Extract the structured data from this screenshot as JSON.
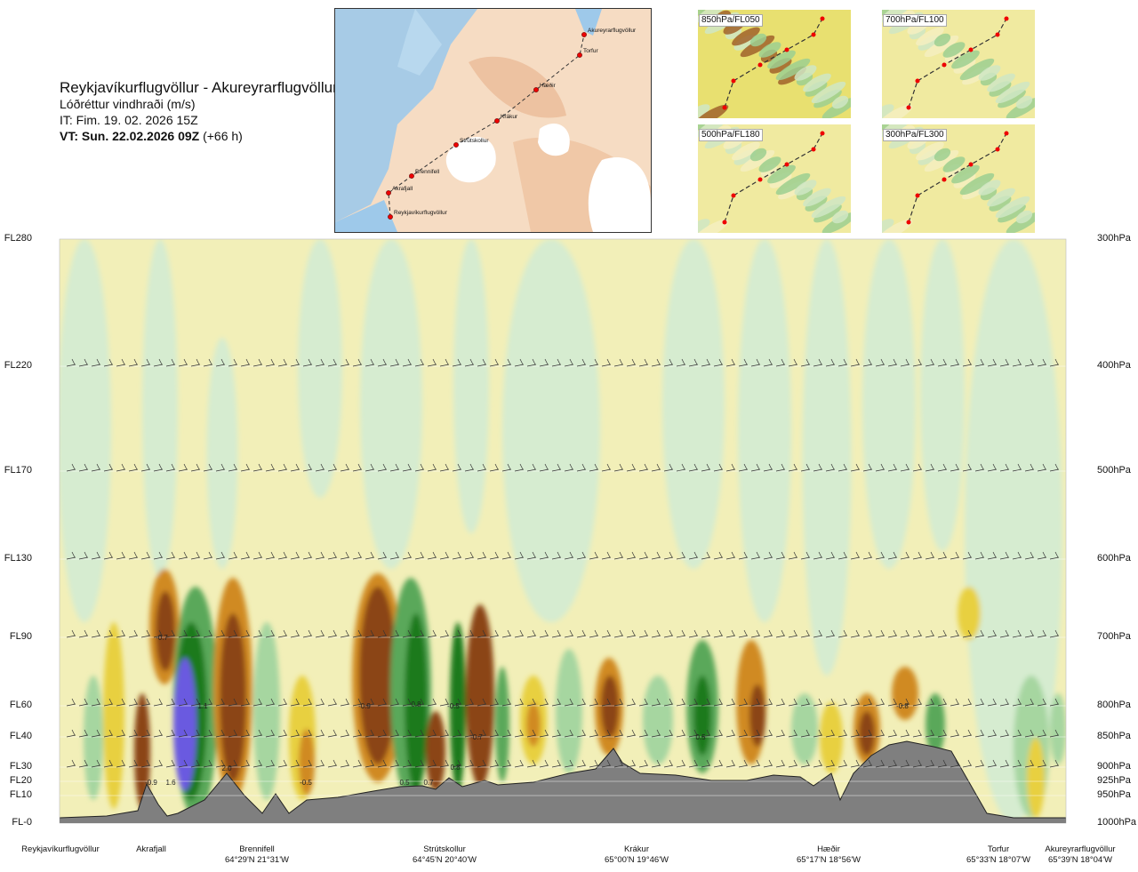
{
  "header": {
    "route": "Reykjavíkurflugvöllur - Akureyrarflugvöllur",
    "quantity": "Lóðréttur vindhraði (m/s)",
    "issue_time": "IT: Fim. 19. 02. 2026 15Z",
    "valid_time": "VT: Sun. 22.02.2026 09Z",
    "lead": "(+66 h)"
  },
  "map": {
    "points": [
      {
        "name": "Akureyrarflugvöllur"
      },
      {
        "name": "Torfur"
      },
      {
        "name": "Hæðir"
      },
      {
        "name": "Krákur"
      },
      {
        "name": "Strútskollur"
      },
      {
        "name": "Brennifell"
      },
      {
        "name": "Akrafjall"
      },
      {
        "name": "Reykjavíkurflugvöllur"
      }
    ]
  },
  "thumbnails": [
    {
      "label": "850hPa/FL050"
    },
    {
      "label": "700hPa/FL100"
    },
    {
      "label": "500hPa/FL180"
    },
    {
      "label": "300hPa/FL300"
    }
  ],
  "colors": {
    "ascent_dark": "#1a7a1a",
    "ascent_mid": "#5aa85a",
    "ascent_light": "#a6d6a0",
    "ascent_pale": "#d6ecd0",
    "ascent_strong": "#6a5ae0",
    "descent_pale": "#f4efb0",
    "descent_light": "#e8d040",
    "descent_mid": "#d08a20",
    "descent_dark": "#8b4513",
    "descent_strong": "#8b1a1a",
    "terrain": "#7f7f7f"
  },
  "chart_data": {
    "type": "heatmap",
    "title": "Lóðréttur vindhraði (m/s)",
    "levels": [
      {
        "fl": "FL280",
        "hpa": "300hPa"
      },
      {
        "fl": "FL220",
        "hpa": "400hPa"
      },
      {
        "fl": "FL170",
        "hpa": "500hPa"
      },
      {
        "fl": "FL130",
        "hpa": "600hPa"
      },
      {
        "fl": "FL90",
        "hpa": "700hPa"
      },
      {
        "fl": "FL60",
        "hpa": "800hPa"
      },
      {
        "fl": "FL40",
        "hpa": "850hPa"
      },
      {
        "fl": "FL30",
        "hpa": "900hPa"
      },
      {
        "fl": "FL20",
        "hpa": "925hPa"
      },
      {
        "fl": "FL10",
        "hpa": "950hPa"
      },
      {
        "fl": "FL-0",
        "hpa": "1000hPa"
      }
    ],
    "stations": [
      {
        "name": "Reykjavíkurflugvöllur",
        "coord": ""
      },
      {
        "name": "Akrafjall",
        "coord": ""
      },
      {
        "name": "Brennifell",
        "coord": "64°29'N 21°31'W"
      },
      {
        "name": "Strútskollur",
        "coord": "64°45'N 20°40'W"
      },
      {
        "name": "Krákur",
        "coord": "65°00'N 19°46'W"
      },
      {
        "name": "Hæðir",
        "coord": "65°17'N 18°56'W"
      },
      {
        "name": "Torfur",
        "coord": "65°33'N 18°07'W"
      },
      {
        "name": "Akureyrarflugvöllur",
        "coord": "65°39'N 18°04'W"
      }
    ],
    "contour_labels": [
      "-0.7",
      "1.1",
      "-0.9",
      "0.8",
      "-0.5",
      "0.7",
      "-0.9",
      "1.6",
      "2.0",
      "-0.5",
      "0.8",
      "0.5",
      "-0.7",
      "0.5",
      "-0.8"
    ],
    "grid": true,
    "legend": "none"
  }
}
